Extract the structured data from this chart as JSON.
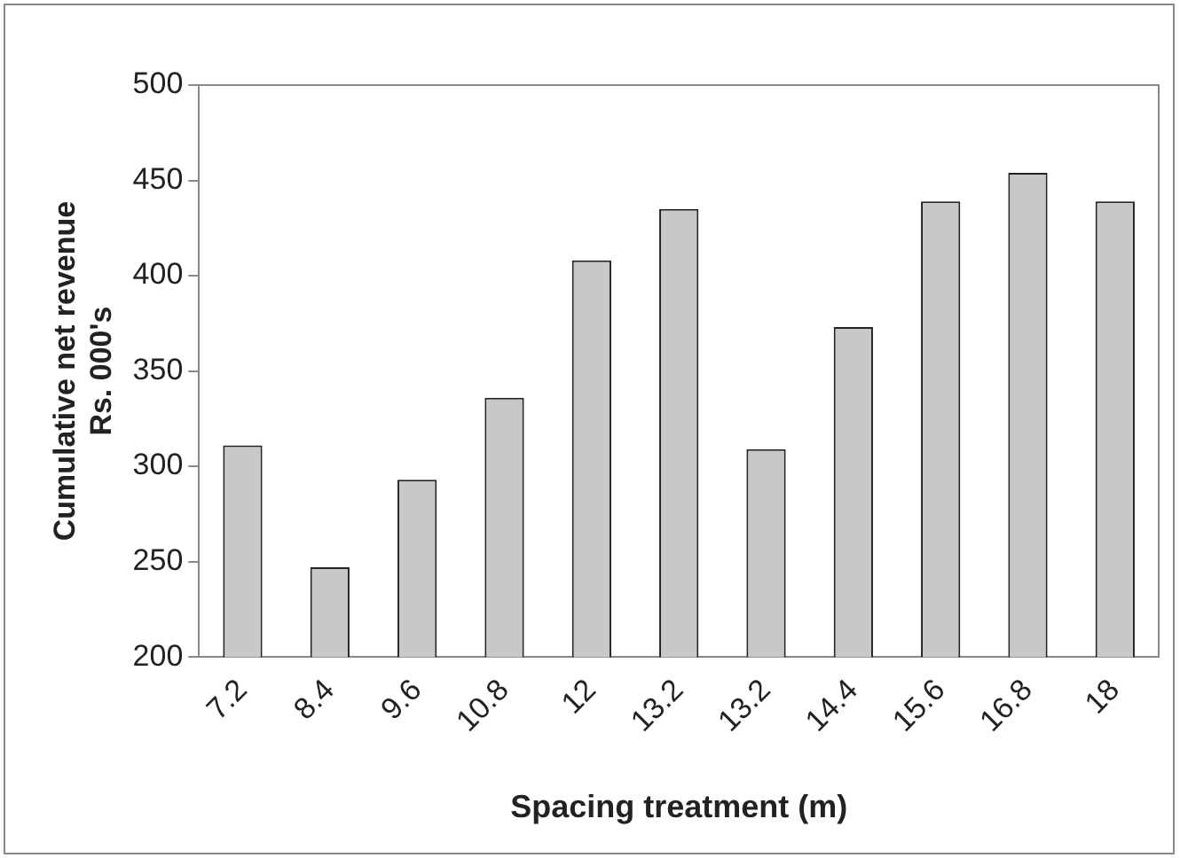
{
  "chart_data": {
    "type": "bar",
    "xlabel": "Spacing treatment (m)",
    "ylabel": "Cumulative net revenue\nRs. 000's",
    "categories": [
      "7.2",
      "8.4",
      "9.6",
      "10.8",
      "12",
      "13.2",
      "13.2",
      "14.4",
      "15.6",
      "16.8",
      "18"
    ],
    "values": [
      311,
      247,
      293,
      336,
      408,
      435,
      309,
      373,
      439,
      454,
      439
    ],
    "color": "#c8c8c8",
    "ylim": [
      200,
      500
    ],
    "yticks": [
      200,
      250,
      300,
      350,
      400,
      450,
      500
    ],
    "grid": false,
    "legend": false
  }
}
